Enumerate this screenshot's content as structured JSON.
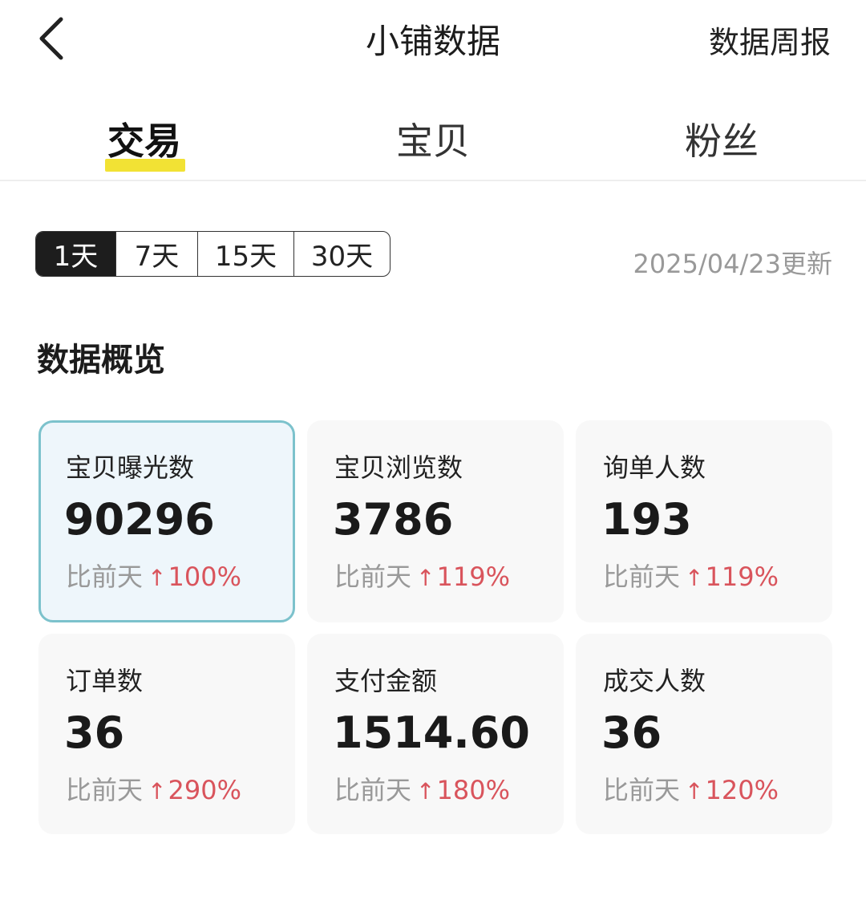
{
  "header": {
    "title": "小铺数据",
    "weekly_report": "数据周报",
    "back_icon": "chevron-left-icon"
  },
  "tabs": [
    {
      "label": "交易",
      "active": true
    },
    {
      "label": "宝贝"
    },
    {
      "label": "粉丝"
    }
  ],
  "accent_color": "#f2e234",
  "ranges": [
    {
      "label": "1天",
      "selected": true
    },
    {
      "label": "7天"
    },
    {
      "label": "15天"
    },
    {
      "label": "30天"
    }
  ],
  "updated": "2025/04/23更新",
  "section_title": "数据概览",
  "compare_label": "比前天",
  "metrics": [
    {
      "label": "宝贝曝光数",
      "value": "90296",
      "change": "100%",
      "selected": true
    },
    {
      "label": "宝贝浏览数",
      "value": "3786",
      "change": "119%"
    },
    {
      "label": "询单人数",
      "value": "193",
      "change": "119%"
    },
    {
      "label": "订单数",
      "value": "36",
      "change": "290%"
    },
    {
      "label": "支付金额",
      "value": "1514.60",
      "change": "180%"
    },
    {
      "label": "成交人数",
      "value": "36",
      "change": "120%"
    }
  ],
  "up_color": "#d9545c"
}
